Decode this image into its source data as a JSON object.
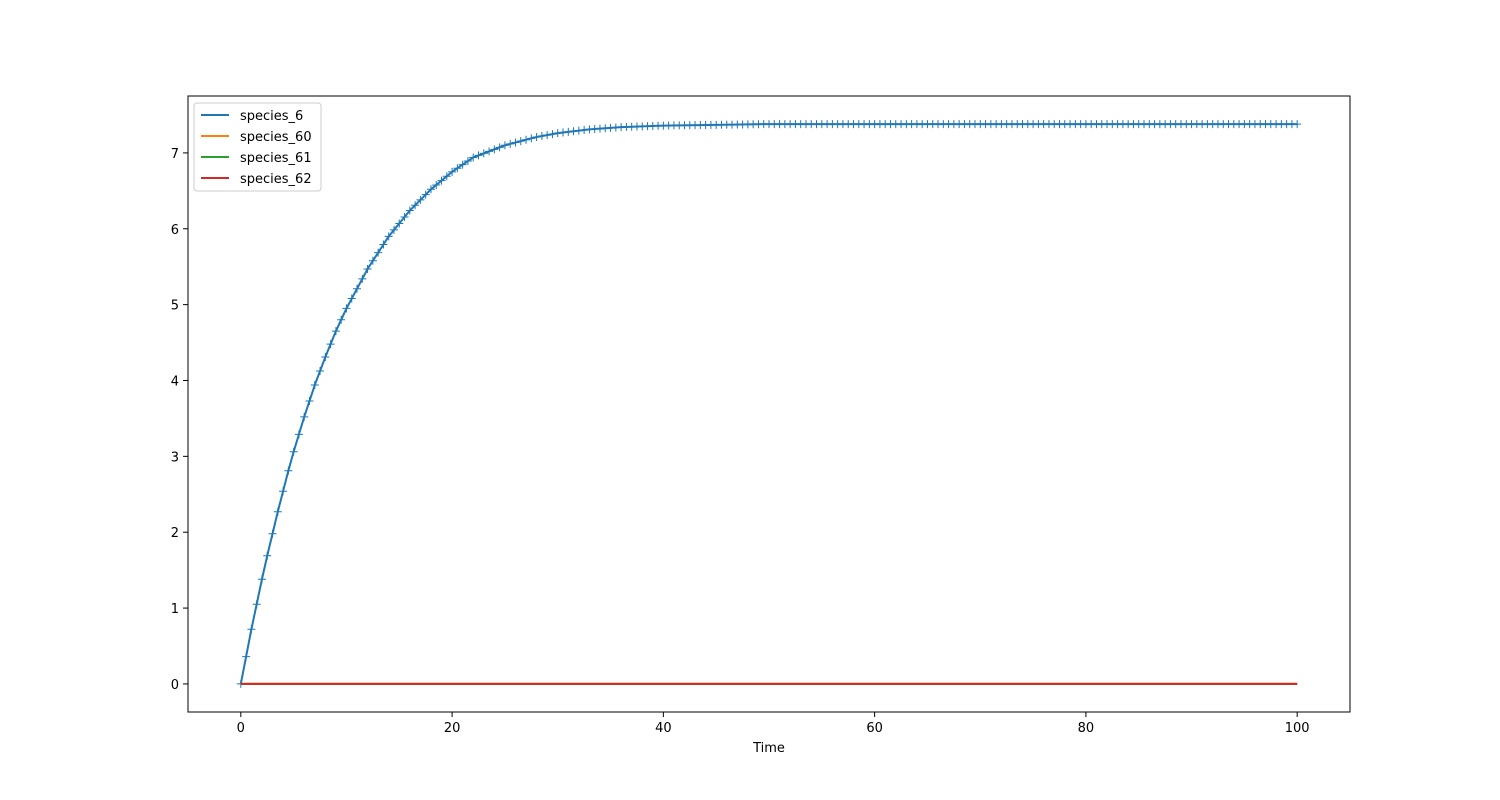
{
  "chart_data": {
    "type": "line",
    "title": "",
    "xlabel": "Time",
    "ylabel": "",
    "xlim": [
      -5,
      105
    ],
    "ylim": [
      -0.37,
      7.75
    ],
    "xticks": [
      0,
      20,
      40,
      60,
      80,
      100
    ],
    "xtick_labels": [
      "0",
      "20",
      "40",
      "60",
      "80",
      "100"
    ],
    "yticks": [
      0,
      1,
      2,
      3,
      4,
      5,
      6,
      7
    ],
    "ytick_labels": [
      "0",
      "1",
      "2",
      "3",
      "4",
      "5",
      "6",
      "7"
    ],
    "grid": false,
    "legend_position": "upper-left",
    "series": [
      {
        "name": "species_6",
        "color": "#1f77b4",
        "marker": "+",
        "x": [
          0,
          0.5,
          1,
          1.5,
          2,
          2.5,
          3,
          3.5,
          4,
          4.5,
          5,
          6,
          7,
          8,
          9,
          10,
          12,
          14,
          16,
          18,
          20,
          22,
          25,
          28,
          30,
          33,
          36,
          40,
          45,
          50,
          55,
          60,
          70,
          80,
          90,
          100
        ],
        "y": [
          0,
          0.36,
          0.72,
          1.05,
          1.38,
          1.69,
          1.98,
          2.27,
          2.54,
          2.81,
          3.06,
          3.52,
          3.94,
          4.31,
          4.65,
          4.95,
          5.47,
          5.9,
          6.24,
          6.52,
          6.75,
          6.94,
          7.1,
          7.21,
          7.26,
          7.31,
          7.34,
          7.36,
          7.37,
          7.38,
          7.38,
          7.38,
          7.38,
          7.38,
          7.38,
          7.38
        ]
      },
      {
        "name": "species_60",
        "color": "#ff7f0e",
        "x": [
          0,
          100
        ],
        "y": [
          0,
          0
        ]
      },
      {
        "name": "species_61",
        "color": "#2ca02c",
        "x": [
          0,
          100
        ],
        "y": [
          0,
          0
        ]
      },
      {
        "name": "species_62",
        "color": "#d62728",
        "x": [
          0,
          100
        ],
        "y": [
          0,
          0
        ]
      }
    ]
  }
}
